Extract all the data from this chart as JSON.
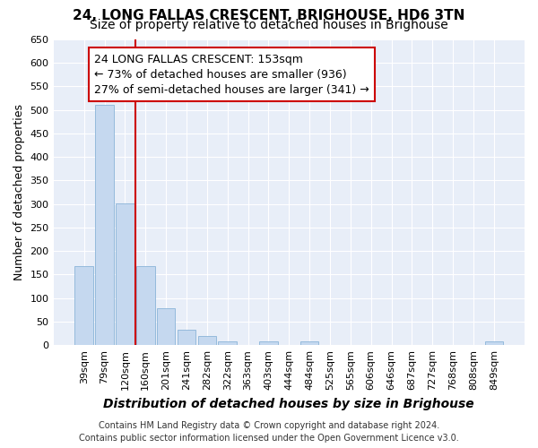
{
  "title": "24, LONG FALLAS CRESCENT, BRIGHOUSE, HD6 3TN",
  "subtitle": "Size of property relative to detached houses in Brighouse",
  "xlabel": "Distribution of detached houses by size in Brighouse",
  "ylabel": "Number of detached properties",
  "categories": [
    "39sqm",
    "79sqm",
    "120sqm",
    "160sqm",
    "201sqm",
    "241sqm",
    "282sqm",
    "322sqm",
    "363sqm",
    "403sqm",
    "444sqm",
    "484sqm",
    "525sqm",
    "565sqm",
    "606sqm",
    "646sqm",
    "687sqm",
    "727sqm",
    "768sqm",
    "808sqm",
    "849sqm"
  ],
  "values": [
    168,
    510,
    302,
    168,
    78,
    32,
    20,
    8,
    0,
    8,
    0,
    8,
    0,
    0,
    0,
    0,
    0,
    0,
    0,
    0,
    8
  ],
  "bar_color": "#c5d8ef",
  "bar_edge_color": "#8ab4d8",
  "vline_x_idx": 2.5,
  "vline_color": "#cc0000",
  "annotation_line1": "24 LONG FALLAS CRESCENT: 153sqm",
  "annotation_line2": "← 73% of detached houses are smaller (936)",
  "annotation_line3": "27% of semi-detached houses are larger (341) →",
  "annotation_box_color": "#ffffff",
  "annotation_box_edge": "#cc0000",
  "ylim": [
    0,
    650
  ],
  "yticks": [
    0,
    50,
    100,
    150,
    200,
    250,
    300,
    350,
    400,
    450,
    500,
    550,
    600,
    650
  ],
  "footer_line1": "Contains HM Land Registry data © Crown copyright and database right 2024.",
  "footer_line2": "Contains public sector information licensed under the Open Government Licence v3.0.",
  "fig_background": "#ffffff",
  "plot_bg_color": "#e8eef8",
  "title_fontsize": 11,
  "subtitle_fontsize": 10,
  "xlabel_fontsize": 10,
  "ylabel_fontsize": 9,
  "tick_fontsize": 8,
  "annotation_fontsize": 9,
  "footer_fontsize": 7
}
